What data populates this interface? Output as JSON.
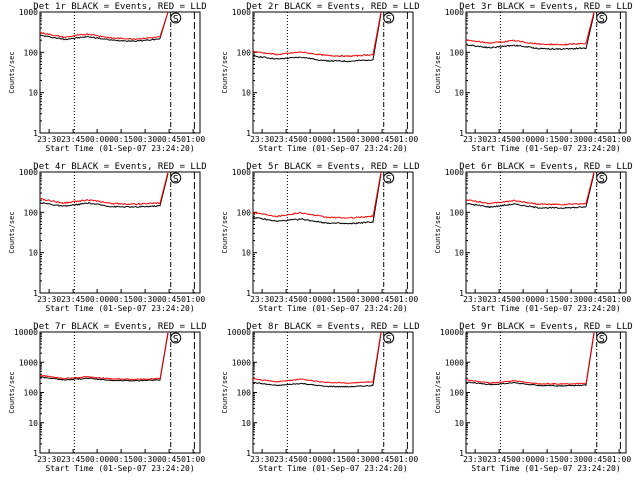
{
  "colors": {
    "events": "#000000",
    "lld": "#ff0000",
    "axis": "#000000",
    "background": "#ffffff"
  },
  "axis_labels": {
    "x": "Start Time (01-Sep-07 23:24:20)",
    "y": "Counts/sec"
  },
  "x_ticks": [
    "23:30",
    "23:45",
    "00:00",
    "00:15",
    "00:30",
    "00:45",
    "01:00"
  ],
  "marker_label": "S",
  "chart_data": [
    {
      "type": "line",
      "title": "Det 1r BLACK = Events, RED = LLD",
      "xlabel": "Start Time (01-Sep-07 23:24:20)",
      "ylabel": "Counts/sec",
      "yscale": "log",
      "ylim": [
        1,
        1000
      ],
      "y_ticks": [
        "1",
        "10",
        "100",
        "1000"
      ],
      "x_ticks": [
        "23:30",
        "23:45",
        "00:00",
        "00:15",
        "00:30",
        "00:45",
        "01:00"
      ],
      "x_minutes": [
        0,
        15,
        30,
        45,
        60,
        75,
        80
      ],
      "series": [
        {
          "name": "Events",
          "values": [
            265,
            210,
            245,
            200,
            190,
            215,
            1000
          ]
        },
        {
          "name": "LLD",
          "values": [
            310,
            235,
            285,
            225,
            215,
            240,
            1000
          ]
        }
      ]
    },
    {
      "type": "line",
      "title": "Det 2r BLACK = Events, RED = LLD",
      "xlabel": "Start Time (01-Sep-07 23:24:20)",
      "ylabel": "Counts/sec",
      "yscale": "log",
      "ylim": [
        1,
        1000
      ],
      "y_ticks": [
        "1",
        "10",
        "100",
        "1000"
      ],
      "x_ticks": [
        "23:30",
        "23:45",
        "00:00",
        "00:15",
        "00:30",
        "00:45",
        "01:00"
      ],
      "x_minutes": [
        0,
        15,
        30,
        45,
        60,
        75,
        80
      ],
      "series": [
        {
          "name": "Events",
          "values": [
            82,
            68,
            76,
            62,
            60,
            66,
            900
          ]
        },
        {
          "name": "LLD",
          "values": [
            105,
            88,
            102,
            84,
            80,
            88,
            1000
          ]
        }
      ]
    },
    {
      "type": "line",
      "title": "Det 3r BLACK = Events, RED = LLD",
      "xlabel": "Start Time (01-Sep-07 23:24:20)",
      "ylabel": "Counts/sec",
      "yscale": "log",
      "ylim": [
        1,
        1000
      ],
      "y_ticks": [
        "1",
        "10",
        "100",
        "1000"
      ],
      "x_ticks": [
        "23:30",
        "23:45",
        "00:00",
        "00:15",
        "00:30",
        "00:45",
        "01:00"
      ],
      "x_minutes": [
        0,
        15,
        30,
        45,
        60,
        75,
        80
      ],
      "series": [
        {
          "name": "Events",
          "values": [
            155,
            130,
            150,
            125,
            120,
            128,
            900
          ]
        },
        {
          "name": "LLD",
          "values": [
            200,
            170,
            195,
            160,
            155,
            165,
            1000
          ]
        }
      ]
    },
    {
      "type": "line",
      "title": "Det 4r BLACK = Events, RED = LLD",
      "xlabel": "Start Time (01-Sep-07 23:24:20)",
      "ylabel": "Counts/sec",
      "yscale": "log",
      "ylim": [
        1,
        1000
      ],
      "y_ticks": [
        "1",
        "10",
        "100",
        "1000"
      ],
      "x_ticks": [
        "23:30",
        "23:45",
        "00:00",
        "00:15",
        "00:30",
        "00:45",
        "01:00"
      ],
      "x_minutes": [
        0,
        15,
        30,
        45,
        60,
        75,
        80
      ],
      "series": [
        {
          "name": "Events",
          "values": [
            175,
            140,
            170,
            138,
            135,
            145,
            900
          ]
        },
        {
          "name": "LLD",
          "values": [
            215,
            170,
            205,
            165,
            160,
            170,
            1000
          ]
        }
      ]
    },
    {
      "type": "line",
      "title": "Det 5r BLACK = Events, RED = LLD",
      "xlabel": "Start Time (01-Sep-07 23:24:20)",
      "ylabel": "Counts/sec",
      "yscale": "log",
      "ylim": [
        1,
        1000
      ],
      "y_ticks": [
        "1",
        "10",
        "100",
        "1000"
      ],
      "x_ticks": [
        "23:30",
        "23:45",
        "00:00",
        "00:15",
        "00:30",
        "00:45",
        "01:00"
      ],
      "x_minutes": [
        0,
        15,
        30,
        45,
        60,
        75,
        80
      ],
      "series": [
        {
          "name": "Events",
          "values": [
            75,
            60,
            68,
            55,
            52,
            58,
            900
          ]
        },
        {
          "name": "LLD",
          "values": [
            100,
            80,
            98,
            76,
            72,
            80,
            1000
          ]
        }
      ]
    },
    {
      "type": "line",
      "title": "Det 6r BLACK = Events, RED = LLD",
      "xlabel": "Start Time (01-Sep-07 23:24:20)",
      "ylabel": "Counts/sec",
      "yscale": "log",
      "ylim": [
        1,
        1000
      ],
      "y_ticks": [
        "1",
        "10",
        "100",
        "1000"
      ],
      "x_ticks": [
        "23:30",
        "23:45",
        "00:00",
        "00:15",
        "00:30",
        "00:45",
        "01:00"
      ],
      "x_minutes": [
        0,
        15,
        30,
        45,
        60,
        75,
        80
      ],
      "series": [
        {
          "name": "Events",
          "values": [
            165,
            135,
            160,
            130,
            128,
            135,
            900
          ]
        },
        {
          "name": "LLD",
          "values": [
            205,
            165,
            195,
            160,
            155,
            165,
            1000
          ]
        }
      ]
    },
    {
      "type": "line",
      "title": "Det 7r BLACK = Events, RED = LLD",
      "xlabel": "Start Time (01-Sep-07 23:24:20)",
      "ylabel": "Counts/sec",
      "yscale": "log",
      "ylim": [
        1,
        10000
      ],
      "y_ticks": [
        "1",
        "10",
        "100",
        "1000",
        "10000"
      ],
      "x_ticks": [
        "23:30",
        "23:45",
        "00:00",
        "00:15",
        "00:30",
        "00:45",
        "01:00"
      ],
      "x_minutes": [
        0,
        15,
        30,
        45,
        60,
        75,
        80
      ],
      "series": [
        {
          "name": "Events",
          "values": [
            330,
            260,
            295,
            250,
            245,
            260,
            9000
          ]
        },
        {
          "name": "LLD",
          "values": [
            370,
            290,
            330,
            280,
            270,
            290,
            10000
          ]
        }
      ]
    },
    {
      "type": "line",
      "title": "Det 8r BLACK = Events, RED = LLD",
      "xlabel": "Start Time (01-Sep-07 23:24:20)",
      "ylabel": "Counts/sec",
      "yscale": "log",
      "ylim": [
        1,
        10000
      ],
      "y_ticks": [
        "1",
        "10",
        "100",
        "1000",
        "10000"
      ],
      "x_ticks": [
        "23:30",
        "23:45",
        "00:00",
        "00:15",
        "00:30",
        "00:45",
        "01:00"
      ],
      "x_minutes": [
        0,
        15,
        30,
        45,
        60,
        75,
        80
      ],
      "series": [
        {
          "name": "Events",
          "values": [
            215,
            170,
            200,
            160,
            155,
            170,
            9000
          ]
        },
        {
          "name": "LLD",
          "values": [
            290,
            225,
            275,
            215,
            205,
            225,
            10000
          ]
        }
      ]
    },
    {
      "type": "line",
      "title": "Det 9r BLACK = Events, RED = LLD",
      "xlabel": "Start Time (01-Sep-07 23:24:20)",
      "ylabel": "Counts/sec",
      "yscale": "log",
      "ylim": [
        1,
        10000
      ],
      "y_ticks": [
        "1",
        "10",
        "100",
        "1000",
        "10000"
      ],
      "x_ticks": [
        "23:30",
        "23:45",
        "00:00",
        "00:15",
        "00:30",
        "00:45",
        "01:00"
      ],
      "x_minutes": [
        0,
        15,
        30,
        45,
        60,
        75,
        80
      ],
      "series": [
        {
          "name": "Events",
          "values": [
            225,
            180,
            210,
            170,
            165,
            175,
            9000
          ]
        },
        {
          "name": "LLD",
          "values": [
            265,
            205,
            245,
            195,
            190,
            200,
            10000
          ]
        }
      ]
    }
  ]
}
